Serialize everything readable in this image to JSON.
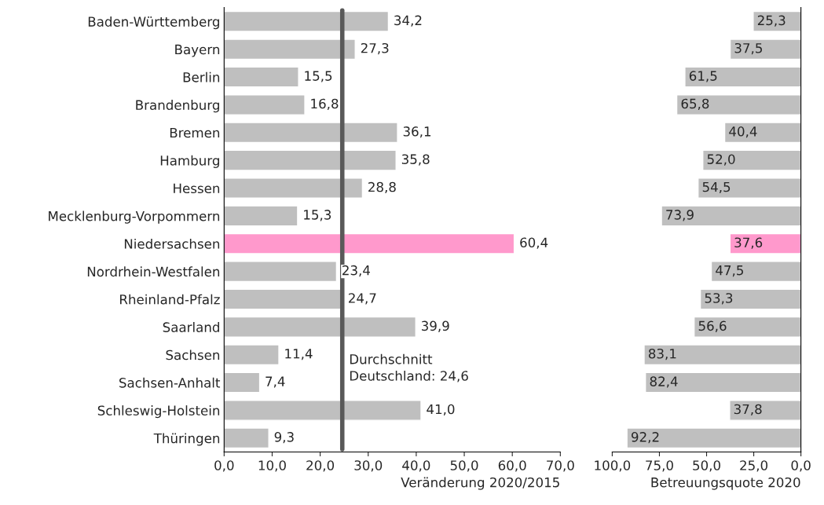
{
  "chart_data": [
    {
      "type": "bar",
      "orientation": "horizontal",
      "xlabel": "Veränderung 2020/2015",
      "categories": [
        "Baden-Württemberg",
        "Bayern",
        "Berlin",
        "Brandenburg",
        "Bremen",
        "Hamburg",
        "Hessen",
        "Mecklenburg-Vorpommern",
        "Niedersachsen",
        "Nordrhein-Westfalen",
        "Rheinland-Pfalz",
        "Saarland",
        "Sachsen",
        "Sachsen-Anhalt",
        "Schleswig-Holstein",
        "Thüringen"
      ],
      "values": [
        34.2,
        27.3,
        15.5,
        16.8,
        36.1,
        35.8,
        28.8,
        15.3,
        60.4,
        23.4,
        24.7,
        39.9,
        11.4,
        7.4,
        41.0,
        9.3
      ],
      "value_labels": [
        "34,2",
        "27,3",
        "15,5",
        "16,8",
        "36,1",
        "35,8",
        "28,8",
        "15,3",
        "60,4",
        "23,4",
        "24,7",
        "39,9",
        "11,4",
        "7,4",
        "41,0",
        "9,3"
      ],
      "colors": [
        "#bfbfbf",
        "#bfbfbf",
        "#bfbfbf",
        "#bfbfbf",
        "#bfbfbf",
        "#bfbfbf",
        "#bfbfbf",
        "#bfbfbf",
        "#ff99cc",
        "#bfbfbf",
        "#bfbfbf",
        "#bfbfbf",
        "#bfbfbf",
        "#bfbfbf",
        "#bfbfbf",
        "#bfbfbf"
      ],
      "xlim": [
        0,
        70
      ],
      "xticks": [
        {
          "value": 0,
          "label": "0,0"
        },
        {
          "value": 10,
          "label": "10,0"
        },
        {
          "value": 20,
          "label": "20,0"
        },
        {
          "value": 30,
          "label": "30,0"
        },
        {
          "value": 40,
          "label": "40,0"
        },
        {
          "value": 50,
          "label": "50,0"
        },
        {
          "value": 60,
          "label": "60,0"
        },
        {
          "value": 70,
          "label": "70,0"
        }
      ],
      "ref_lines": [
        {
          "axis": "x",
          "value": 24.6,
          "label": "Durchschnitt\nDeutschland: 24,6",
          "color": "#595959"
        }
      ]
    },
    {
      "type": "bar",
      "orientation": "horizontal",
      "xlabel": "Betreuungsquote 2020",
      "tick_labels": "x",
      "categories": [
        null,
        null,
        null,
        null,
        null,
        null,
        null,
        null,
        null,
        null,
        null,
        null,
        null,
        null,
        null,
        null
      ],
      "values": [
        25.3,
        37.5,
        61.5,
        65.8,
        40.4,
        52.0,
        54.5,
        73.9,
        37.6,
        47.5,
        53.3,
        56.6,
        83.1,
        82.4,
        37.8,
        92.2
      ],
      "value_labels": [
        "25,3",
        "37,5",
        "61,5",
        "65,8",
        "40,4",
        "52,0",
        "54,5",
        "73,9",
        "37,6",
        "47,5",
        "53,3",
        "56,6",
        "83,1",
        "82,4",
        "37,8",
        "92,2"
      ],
      "colors": [
        "#bfbfbf",
        "#bfbfbf",
        "#bfbfbf",
        "#bfbfbf",
        "#bfbfbf",
        "#bfbfbf",
        "#bfbfbf",
        "#bfbfbf",
        "#ff99cc",
        "#bfbfbf",
        "#bfbfbf",
        "#bfbfbf",
        "#bfbfbf",
        "#bfbfbf",
        "#bfbfbf",
        "#bfbfbf"
      ],
      "xlim": [
        100,
        0
      ],
      "xticks": [
        {
          "value": 100,
          "label": "100,0"
        },
        {
          "value": 75,
          "label": "75,0"
        },
        {
          "value": 50,
          "label": "50,0"
        },
        {
          "value": 25,
          "label": "25,0"
        },
        {
          "value": 0,
          "label": "0,0"
        }
      ]
    }
  ]
}
